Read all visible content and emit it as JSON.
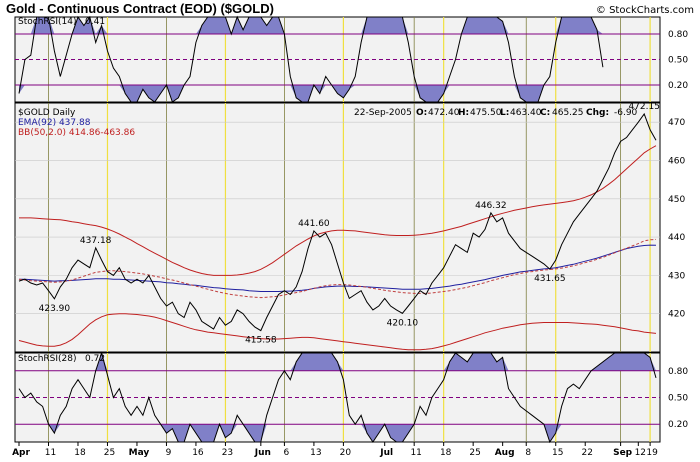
{
  "header": {
    "title": "Gold - Continuous Contract (EOD) ($GOLD)",
    "watermark": "© StockCharts.com"
  },
  "chart_data": [
    {
      "type": "line",
      "panel": "top-indicator",
      "legend_label": "StochRSI(14)",
      "legend_value": "0.41",
      "ylim": [
        0,
        1
      ],
      "yticks": [
        "0.80",
        "0.50",
        "0.20"
      ],
      "ytick_values": [
        0.8,
        0.5,
        0.2
      ],
      "series": [
        {
          "values": [
            0.1,
            0.5,
            0.55,
            1.0,
            1.0,
            1.0,
            0.6,
            0.3,
            0.55,
            0.8,
            1.0,
            0.9,
            1.0,
            0.7,
            0.9,
            0.6,
            0.4,
            0.3,
            0.1,
            0.0,
            0.0,
            0.15,
            0.05,
            0.0,
            0.1,
            0.2,
            0.0,
            0.05,
            0.2,
            0.3,
            0.7,
            0.9,
            1.0,
            1.0,
            1.0,
            1.0,
            0.8,
            1.0,
            0.85,
            1.0,
            1.0,
            1.0,
            0.9,
            1.0,
            1.0,
            0.8,
            0.3,
            0.05,
            0.0,
            0.0,
            0.2,
            0.1,
            0.3,
            0.2,
            0.1,
            0.05,
            0.15,
            0.3,
            0.7,
            1.0,
            1.0,
            1.0,
            1.0,
            1.0,
            1.0,
            1.0,
            0.7,
            0.3,
            0.05,
            0.0,
            0.0,
            0.0,
            0.1,
            0.3,
            0.5,
            0.8,
            1.0,
            1.0,
            1.0,
            1.0,
            1.0,
            1.0,
            0.95,
            0.7,
            0.3,
            0.05,
            0.0,
            0.0,
            0.0,
            0.2,
            0.3,
            0.7,
            1.0,
            1.0,
            1.0,
            1.0,
            1.0,
            1.0,
            0.85,
            0.41
          ]
        }
      ]
    },
    {
      "type": "line",
      "panel": "price",
      "legend_title": "$GOLD Daily",
      "legend_ema": "EMA(92) 437.88",
      "legend_bb": "BB(50,2.0) 414.86-463.86",
      "info": {
        "date": "22-Sep-2005",
        "o_label": "O:",
        "o": "472.40",
        "h_label": "H:",
        "h": "475.50",
        "l_label": "L:",
        "l": "463.40",
        "c_label": "C:",
        "c": "465.25",
        "chg_label": "Chg:",
        "chg": "-6.90"
      },
      "ylim": [
        410,
        475
      ],
      "yticks": [
        470,
        460,
        450,
        440,
        430,
        420
      ],
      "annotations": [
        {
          "text": "423.90",
          "index": 6,
          "value": 423.9
        },
        {
          "text": "437.18",
          "index": 13,
          "value": 437.18
        },
        {
          "text": "415.58",
          "index": 41,
          "value": 415.58
        },
        {
          "text": "441.60",
          "index": 50,
          "value": 441.6
        },
        {
          "text": "420.10",
          "index": 65,
          "value": 420.1
        },
        {
          "text": "446.32",
          "index": 80,
          "value": 446.32
        },
        {
          "text": "431.65",
          "index": 90,
          "value": 431.65
        },
        {
          "text": "472.15",
          "index": 106,
          "value": 472.15
        }
      ],
      "series": [
        {
          "name": "Price",
          "color": "#000000",
          "values": [
            428.5,
            429.0,
            428.0,
            427.5,
            428.0,
            426.0,
            423.9,
            427.0,
            429.0,
            432.0,
            434.0,
            433.0,
            432.0,
            437.18,
            434.0,
            431.0,
            430.0,
            432.0,
            429.0,
            428.0,
            429.0,
            428.0,
            430.0,
            427.0,
            424.0,
            422.0,
            423.0,
            420.0,
            419.0,
            423.0,
            421.0,
            418.0,
            417.0,
            416.0,
            419.0,
            417.0,
            418.0,
            421.0,
            420.0,
            418.0,
            416.5,
            415.58,
            419.0,
            422.0,
            425.0,
            426.0,
            425.0,
            427.0,
            431.0,
            437.0,
            441.6,
            440.0,
            441.0,
            438.0,
            433.0,
            428.0,
            424.0,
            425.0,
            426.0,
            423.0,
            421.0,
            422.0,
            424.0,
            422.0,
            421.0,
            420.1,
            422.0,
            424.0,
            426.0,
            425.0,
            428.0,
            430.0,
            432.0,
            435.0,
            438.0,
            437.0,
            436.0,
            441.0,
            440.0,
            442.0,
            446.32,
            444.0,
            445.0,
            441.0,
            439.0,
            437.0,
            436.0,
            435.0,
            434.0,
            433.0,
            431.65,
            434.0,
            438.0,
            441.0,
            444.0,
            446.0,
            448.0,
            450.0,
            452.0,
            455.0,
            458.0,
            462.0,
            465.0,
            466.0,
            468.0,
            470.0,
            472.15,
            468.0,
            465.25
          ]
        },
        {
          "name": "EMA(92)",
          "color": "#2020a0",
          "values": [
            429.0,
            429.0,
            428.9,
            428.8,
            428.7,
            428.6,
            428.5,
            428.6,
            428.6,
            428.7,
            428.8,
            428.9,
            429.0,
            429.1,
            429.1,
            429.1,
            429.0,
            429.0,
            428.9,
            428.8,
            428.7,
            428.6,
            428.5,
            428.4,
            428.3,
            428.1,
            428.0,
            427.8,
            427.7,
            427.5,
            427.4,
            427.2,
            427.0,
            426.8,
            426.7,
            426.5,
            426.4,
            426.3,
            426.2,
            426.0,
            425.9,
            425.8,
            425.8,
            425.8,
            425.8,
            425.9,
            425.9,
            426.0,
            426.1,
            426.3,
            426.6,
            426.8,
            427.0,
            427.1,
            427.2,
            427.2,
            427.2,
            427.1,
            427.1,
            427.0,
            426.9,
            426.8,
            426.7,
            426.6,
            426.5,
            426.4,
            426.4,
            426.4,
            426.4,
            426.5,
            426.6,
            426.8,
            427.0,
            427.2,
            427.5,
            427.7,
            428.0,
            428.3,
            428.6,
            428.9,
            429.3,
            429.6,
            430.0,
            430.3,
            430.6,
            430.9,
            431.1,
            431.3,
            431.5,
            431.7,
            431.8,
            432.0,
            432.3,
            432.6,
            432.9,
            433.3,
            433.7,
            434.1,
            434.5,
            435.0,
            435.5,
            436.0,
            436.5,
            437.0,
            437.3,
            437.6,
            437.8,
            437.9,
            437.88
          ]
        },
        {
          "name": "MA(50)",
          "color": "#c04040",
          "dashed": true,
          "values": [
            429.0,
            428.8,
            428.6,
            428.5,
            428.4,
            428.3,
            428.2,
            428.3,
            428.5,
            428.8,
            429.3,
            429.8,
            430.3,
            430.8,
            431.0,
            431.2,
            431.2,
            431.1,
            431.0,
            430.8,
            430.6,
            430.4,
            430.1,
            429.8,
            429.5,
            429.1,
            428.8,
            428.4,
            428.0,
            427.6,
            427.2,
            426.8,
            426.4,
            426.0,
            425.6,
            425.3,
            425.0,
            424.8,
            424.6,
            424.4,
            424.3,
            424.2,
            424.3,
            424.4,
            424.6,
            424.9,
            425.2,
            425.5,
            425.8,
            426.2,
            426.6,
            427.0,
            427.3,
            427.5,
            427.6,
            427.6,
            427.5,
            427.3,
            427.1,
            426.9,
            426.6,
            426.4,
            426.1,
            425.9,
            425.7,
            425.5,
            425.4,
            425.3,
            425.3,
            425.3,
            425.4,
            425.6,
            425.8,
            426.0,
            426.3,
            426.6,
            426.9,
            427.3,
            427.7,
            428.1,
            428.6,
            429.0,
            429.4,
            429.8,
            430.2,
            430.5,
            430.8,
            431.0,
            431.2,
            431.4,
            431.5,
            431.7,
            431.9,
            432.2,
            432.5,
            432.9,
            433.3,
            433.7,
            434.2,
            434.7,
            435.3,
            435.9,
            436.5,
            437.1,
            437.7,
            438.3,
            439.0,
            439.3,
            439.4
          ]
        },
        {
          "name": "BB Upper",
          "color": "#c02020",
          "values": [
            445.0,
            445.0,
            445.0,
            444.9,
            444.8,
            444.7,
            444.6,
            444.5,
            444.3,
            444.0,
            443.8,
            443.5,
            443.2,
            443.0,
            442.6,
            442.1,
            441.5,
            440.8,
            440.0,
            439.2,
            438.3,
            437.5,
            436.6,
            435.8,
            435.0,
            434.2,
            433.4,
            432.7,
            432.0,
            431.4,
            430.9,
            430.5,
            430.2,
            430.0,
            430.0,
            430.0,
            430.0,
            430.1,
            430.3,
            430.6,
            431.0,
            431.6,
            432.4,
            433.3,
            434.4,
            435.5,
            436.6,
            437.7,
            438.6,
            439.5,
            440.3,
            440.9,
            441.3,
            441.6,
            441.8,
            441.8,
            441.7,
            441.6,
            441.4,
            441.2,
            441.0,
            440.8,
            440.6,
            440.5,
            440.4,
            440.4,
            440.4,
            440.5,
            440.6,
            440.8,
            441.0,
            441.3,
            441.6,
            442.0,
            442.4,
            442.8,
            443.3,
            443.8,
            444.3,
            444.8,
            445.3,
            445.8,
            446.2,
            446.6,
            447.0,
            447.3,
            447.6,
            447.9,
            448.2,
            448.4,
            448.6,
            448.8,
            449.0,
            449.2,
            449.5,
            449.9,
            450.4,
            451.0,
            451.8,
            452.7,
            453.8,
            455.0,
            456.4,
            457.8,
            459.2,
            460.6,
            462.0,
            463.0,
            463.86
          ]
        },
        {
          "name": "BB Lower",
          "color": "#c02020",
          "values": [
            413.0,
            412.6,
            412.2,
            411.8,
            411.6,
            411.5,
            411.5,
            411.8,
            412.4,
            413.3,
            414.5,
            415.9,
            417.3,
            418.4,
            419.2,
            419.7,
            419.9,
            420.0,
            420.0,
            419.9,
            419.8,
            419.6,
            419.4,
            419.1,
            418.7,
            418.2,
            417.7,
            417.2,
            416.7,
            416.2,
            415.8,
            415.5,
            415.2,
            415.0,
            414.8,
            414.6,
            414.4,
            414.2,
            414.0,
            413.8,
            413.6,
            413.5,
            413.4,
            413.4,
            413.4,
            413.5,
            413.6,
            413.7,
            413.8,
            413.8,
            413.7,
            413.5,
            413.3,
            413.1,
            412.9,
            412.7,
            412.5,
            412.3,
            412.1,
            411.9,
            411.7,
            411.5,
            411.3,
            411.1,
            410.9,
            410.7,
            410.6,
            410.6,
            410.6,
            410.7,
            410.9,
            411.2,
            411.6,
            412.0,
            412.5,
            413.0,
            413.5,
            414.0,
            414.5,
            415.0,
            415.4,
            415.8,
            416.2,
            416.5,
            416.8,
            417.1,
            417.3,
            417.5,
            417.6,
            417.7,
            417.7,
            417.7,
            417.7,
            417.7,
            417.6,
            417.5,
            417.4,
            417.3,
            417.2,
            417.0,
            416.8,
            416.6,
            416.3,
            416.0,
            415.7,
            415.5,
            415.2,
            415.0,
            414.86
          ]
        }
      ]
    },
    {
      "type": "line",
      "panel": "bottom-indicator",
      "legend_label": "StochRSI(28)",
      "legend_value": "0.72",
      "ylim": [
        0,
        1
      ],
      "yticks": [
        "0.80",
        "0.50",
        "0.20"
      ],
      "ytick_values": [
        0.8,
        0.5,
        0.2
      ],
      "series": [
        {
          "values": [
            0.6,
            0.5,
            0.55,
            0.45,
            0.4,
            0.2,
            0.1,
            0.3,
            0.4,
            0.6,
            0.7,
            0.6,
            0.5,
            0.8,
            1.0,
            0.75,
            0.5,
            0.6,
            0.4,
            0.3,
            0.4,
            0.3,
            0.5,
            0.3,
            0.2,
            0.1,
            0.15,
            0.0,
            0.0,
            0.2,
            0.1,
            0.0,
            0.0,
            0.0,
            0.2,
            0.05,
            0.1,
            0.3,
            0.2,
            0.1,
            0.0,
            0.0,
            0.3,
            0.5,
            0.7,
            0.8,
            0.7,
            0.9,
            1.0,
            1.0,
            1.0,
            1.0,
            1.0,
            1.0,
            0.9,
            0.7,
            0.3,
            0.2,
            0.3,
            0.1,
            0.0,
            0.1,
            0.2,
            0.05,
            0.0,
            0.0,
            0.1,
            0.2,
            0.4,
            0.3,
            0.5,
            0.6,
            0.7,
            0.9,
            1.0,
            0.95,
            0.9,
            1.0,
            1.0,
            1.0,
            1.0,
            0.9,
            0.95,
            0.6,
            0.5,
            0.4,
            0.35,
            0.3,
            0.25,
            0.2,
            0.0,
            0.1,
            0.4,
            0.6,
            0.65,
            0.6,
            0.7,
            0.8,
            0.85,
            0.9,
            0.95,
            1.0,
            1.0,
            1.0,
            1.0,
            1.0,
            1.0,
            0.95,
            0.72
          ]
        }
      ]
    }
  ],
  "x_axis": {
    "ticks": [
      {
        "label": "Apr",
        "index": 0,
        "bold": true
      },
      {
        "label": "11",
        "index": 5
      },
      {
        "label": "18",
        "index": 10
      },
      {
        "label": "25",
        "index": 15
      },
      {
        "label": "May",
        "index": 20,
        "bold": true
      },
      {
        "label": "9",
        "index": 25
      },
      {
        "label": "16",
        "index": 30
      },
      {
        "label": "23",
        "index": 35
      },
      {
        "label": "Jun",
        "index": 41,
        "bold": true
      },
      {
        "label": "6",
        "index": 45
      },
      {
        "label": "13",
        "index": 50
      },
      {
        "label": "20",
        "index": 55
      },
      {
        "label": "Jul",
        "index": 62,
        "bold": true
      },
      {
        "label": "11",
        "index": 67
      },
      {
        "label": "18",
        "index": 72
      },
      {
        "label": "25",
        "index": 77
      },
      {
        "label": "Aug",
        "index": 82,
        "bold": true
      },
      {
        "label": "8",
        "index": 86
      },
      {
        "label": "15",
        "index": 91
      },
      {
        "label": "22",
        "index": 96
      },
      {
        "label": "Sep",
        "index": 102,
        "bold": true
      },
      {
        "label": "12",
        "index": 105
      },
      {
        "label": "19",
        "index": 107
      }
    ],
    "yellow_lines": [
      15,
      35,
      55,
      72,
      91,
      107
    ],
    "olive_lines": [
      5,
      25,
      45,
      67,
      86,
      102
    ]
  },
  "colors": {
    "panel_bg": "#f2f2f2",
    "band_fill": "#8080c8",
    "indicator_line": "#000000",
    "guide_line": "#800080",
    "yellow_line": "#f0e040",
    "olive_line": "#808040"
  }
}
